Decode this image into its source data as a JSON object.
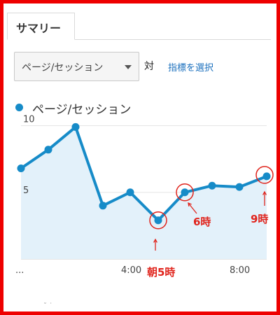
{
  "tabs": {
    "active_label": "サマリー"
  },
  "controls": {
    "metric_select_value": "ページ/セッション",
    "vs_label": "対",
    "select_metric_link": "指標を選択"
  },
  "legend": {
    "label": "ページ/セッション"
  },
  "colors": {
    "series": "#168bc8",
    "area": "#e3f1fa",
    "annotation": "#e0241c"
  },
  "chart_data": {
    "type": "area",
    "title": "",
    "xlabel": "",
    "ylabel": "",
    "series": [
      {
        "name": "ページ/セッション",
        "values": [
          6.8,
          8.2,
          9.9,
          4.0,
          5.0,
          2.9,
          5.0,
          5.5,
          5.4,
          6.2
        ]
      }
    ],
    "x": [
      0,
      1,
      2,
      3,
      4,
      5,
      6,
      7,
      8,
      9
    ],
    "xlim": [
      0,
      9
    ],
    "ylim": [
      0,
      10.5
    ],
    "y_ticks": [
      {
        "value": 10,
        "label": "10"
      },
      {
        "value": 5,
        "label": "5"
      }
    ],
    "x_ticks": [
      {
        "x": 0,
        "label": "..."
      },
      {
        "x": 4,
        "label": "4:00"
      },
      {
        "x": 8,
        "label": "8:00"
      }
    ],
    "grid": true,
    "annotations": [
      {
        "x": 5,
        "label": "朝5時"
      },
      {
        "x": 6,
        "label": "6時"
      },
      {
        "x": 9,
        "label": "9時"
      }
    ]
  }
}
